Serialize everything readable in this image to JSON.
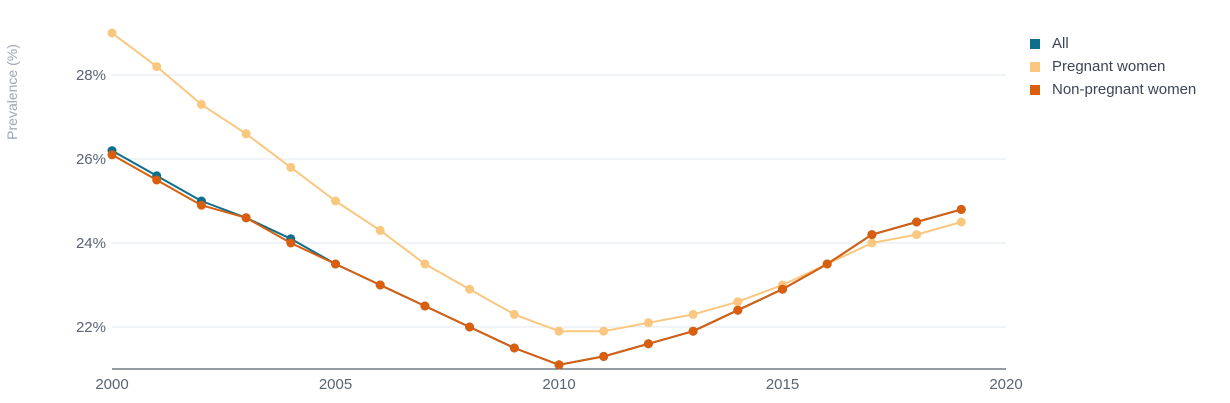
{
  "chart_data": {
    "type": "line",
    "title": "",
    "xlabel": "",
    "ylabel": "Prevalence (%)",
    "xlim": [
      2000,
      2020
    ],
    "ylim": [
      21,
      29.8
    ],
    "x_ticks": [
      2000,
      2005,
      2010,
      2015,
      2020
    ],
    "y_ticks": [
      {
        "value": 22,
        "label": "22%"
      },
      {
        "value": 24,
        "label": "24%"
      },
      {
        "value": 26,
        "label": "26%"
      },
      {
        "value": 28,
        "label": "28%"
      }
    ],
    "grid": true,
    "legend_position": "top-right",
    "x": [
      2000,
      2001,
      2002,
      2003,
      2004,
      2005,
      2006,
      2007,
      2008,
      2009,
      2010,
      2011,
      2012,
      2013,
      2014,
      2015,
      2016,
      2017,
      2018,
      2019
    ],
    "series": [
      {
        "name": "All",
        "color": "#0f6e8c",
        "values": [
          26.2,
          25.6,
          25.0,
          24.6,
          24.1,
          23.5,
          23.0,
          22.5,
          22.0,
          21.5,
          21.1,
          21.3,
          21.6,
          21.9,
          22.4,
          22.9,
          23.5,
          24.2,
          24.5,
          24.8
        ]
      },
      {
        "name": "Pregnant women",
        "color": "#f9c77f",
        "values": [
          29.0,
          28.2,
          27.3,
          26.6,
          25.8,
          25.0,
          24.3,
          23.5,
          22.9,
          22.3,
          21.9,
          21.9,
          22.1,
          22.3,
          22.6,
          23.0,
          23.5,
          24.0,
          24.2,
          24.5
        ]
      },
      {
        "name": "Non-pregnant women",
        "color": "#d95f0e",
        "values": [
          26.1,
          25.5,
          24.9,
          24.6,
          24.0,
          23.5,
          23.0,
          22.5,
          22.0,
          21.5,
          21.1,
          21.3,
          21.6,
          21.9,
          22.4,
          22.9,
          23.5,
          24.2,
          24.5,
          24.8
        ]
      }
    ]
  }
}
